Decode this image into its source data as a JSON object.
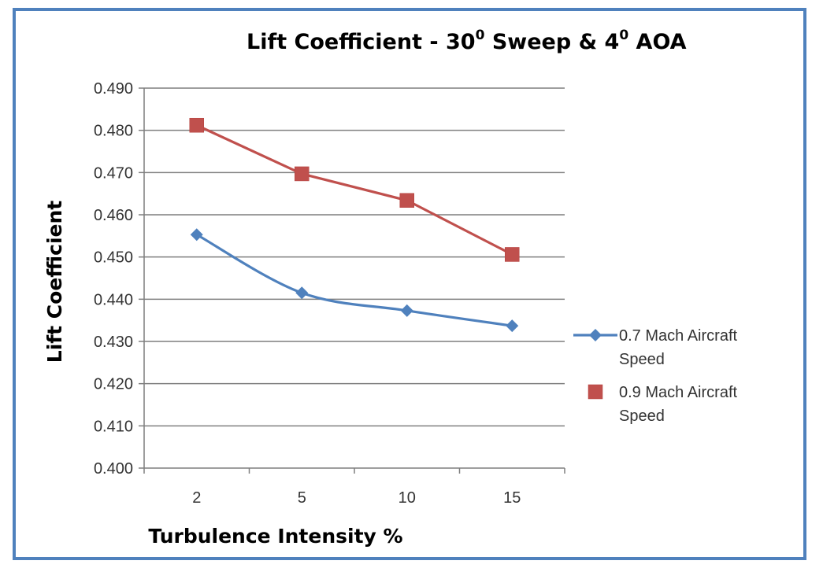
{
  "chart_data": {
    "type": "line",
    "title_parts": [
      "Lift Coefficient - 30",
      "0",
      " Sweep  & 4",
      "0",
      " AOA"
    ],
    "xlabel": "Turbulence Intensity %",
    "ylabel": "Lift Coefficient",
    "categories": [
      "2",
      "5",
      "10",
      "15"
    ],
    "ylim": [
      0.4,
      0.49
    ],
    "yticks": [
      "0.400",
      "0.410",
      "0.420",
      "0.430",
      "0.440",
      "0.450",
      "0.460",
      "0.470",
      "0.480",
      "0.490"
    ],
    "grid": true,
    "legend_position": "right",
    "series": [
      {
        "name_lines": [
          "0.7 Mach Aircraft",
          "Speed"
        ],
        "values": [
          0.4553,
          0.4415,
          0.4373,
          0.4337
        ],
        "color": "#4f81bd",
        "marker": "diamond"
      },
      {
        "name_lines": [
          "0.9 Mach Aircraft",
          "Speed"
        ],
        "values": [
          0.4812,
          0.4697,
          0.4634,
          0.4506
        ],
        "color": "#c0504d",
        "marker": "square"
      }
    ]
  }
}
